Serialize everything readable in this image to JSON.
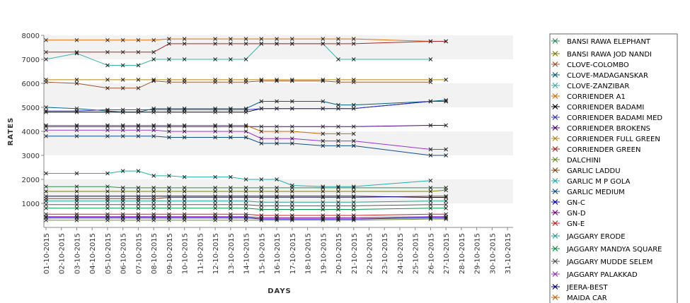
{
  "chart_data": {
    "type": "line",
    "xlabel": "DAYS",
    "ylabel": "RATES",
    "ylim": [
      0,
      8000
    ],
    "yticks": [
      1000,
      2000,
      3000,
      4000,
      5000,
      6000,
      7000,
      8000
    ],
    "grid": "alternating horizontal bands",
    "legend_position": "right",
    "categories": [
      "01-10-2015",
      "02-10-2015",
      "03-10-2015",
      "04-10-2015",
      "05-10-2015",
      "06-10-2015",
      "07-10-2015",
      "08-10-2015",
      "09-10-2015",
      "10-10-2015",
      "11-10-2015",
      "12-10-2015",
      "13-10-2015",
      "14-10-2015",
      "15-10-2015",
      "16-10-2015",
      "17-10-2015",
      "18-10-2015",
      "19-10-2015",
      "20-10-2015",
      "21-10-2015",
      "22-10-2015",
      "23-10-2015",
      "24-10-2015",
      "25-10-2015",
      "26-10-2015",
      "27-10-2015",
      "28-10-2015",
      "29-10-2015",
      "30-10-2015",
      "31-10-2015"
    ],
    "dates": [
      "01-10-2015",
      "03-10-2015",
      "05-10-2015",
      "06-10-2015",
      "07-10-2015",
      "08-10-2015",
      "09-10-2015",
      "10-10-2015",
      "12-10-2015",
      "13-10-2015",
      "14-10-2015",
      "15-10-2015",
      "16-10-2015",
      "17-10-2015",
      "19-10-2015",
      "20-10-2015",
      "21-10-2015",
      "26-10-2015",
      "27-10-2015"
    ],
    "series": [
      {
        "name": "BANSI RAWA ELEPHANT",
        "color": "#2e8b57",
        "values": [
          1700,
          1700,
          1700,
          1650,
          1650,
          1650,
          1650,
          1650,
          1650,
          1650,
          1650,
          1650,
          1650,
          1650,
          1650,
          1650,
          1650,
          1650,
          1650
        ]
      },
      {
        "name": "BANSI RAWA JOD NANDI",
        "color": "#808000",
        "values": [
          1500,
          1500,
          1500,
          1500,
          1500,
          1500,
          1500,
          1500,
          1500,
          1500,
          1500,
          1500,
          1500,
          1500,
          1500,
          1500,
          1500,
          1500,
          1550
        ]
      },
      {
        "name": "CLOVE-COLOMBO",
        "color": "#a0522d",
        "values": [
          6050,
          6000,
          5800,
          5800,
          5800,
          6100,
          6050,
          6050,
          6050,
          6050,
          6050,
          6100,
          6100,
          6100,
          6100,
          6050,
          6050,
          6050,
          null
        ]
      },
      {
        "name": "CLOVE-MADAGANSKAR",
        "color": "#006080",
        "values": [
          5000,
          4950,
          4850,
          4800,
          4800,
          4950,
          4950,
          4950,
          4950,
          4950,
          4950,
          5250,
          5250,
          5250,
          5250,
          5100,
          5100,
          5250,
          5300
        ]
      },
      {
        "name": "CLOVE-ZANZIBAR",
        "color": "#3cb3a8",
        "values": [
          7000,
          7250,
          6750,
          6750,
          6750,
          7000,
          7000,
          7000,
          7000,
          7000,
          7000,
          7650,
          7650,
          7650,
          7650,
          7000,
          7000,
          7000,
          null
        ]
      },
      {
        "name": "CORRIENDER A1",
        "color": "#e07000",
        "values": [
          7800,
          7800,
          7800,
          7800,
          7800,
          7800,
          7850,
          7850,
          7850,
          7850,
          7850,
          7850,
          7850,
          7850,
          7850,
          7850,
          7850,
          7750,
          7750
        ]
      },
      {
        "name": "CORRIENDER BADAMI",
        "color": "#000000",
        "values": [
          4800,
          4800,
          4800,
          4800,
          4800,
          4800,
          4800,
          4800,
          4800,
          4800,
          4800,
          4950,
          4950,
          4950,
          4950,
          4950,
          4950,
          5250,
          5250
        ]
      },
      {
        "name": "CORRIENDER BADAMI MED",
        "color": "#3333cc",
        "values": [
          4850,
          4850,
          4900,
          4900,
          4900,
          4900,
          4900,
          4900,
          4900,
          4900,
          4900,
          4950,
          4950,
          4950,
          4950,
          4950,
          4950,
          5250,
          5250
        ]
      },
      {
        "name": "CORRIENDER BROKENS",
        "color": "#4b0082",
        "values": [
          4200,
          4200,
          4200,
          4200,
          4200,
          4200,
          4200,
          4200,
          4200,
          4200,
          4200,
          4200,
          4200,
          4200,
          4200,
          4200,
          4200,
          4250,
          4250
        ]
      },
      {
        "name": "CORRIENDER FULL GREEN",
        "color": "#b8860b",
        "values": [
          6150,
          6150,
          6150,
          6150,
          6150,
          6150,
          6150,
          6150,
          6150,
          6150,
          6150,
          6150,
          6150,
          6150,
          6150,
          6150,
          6150,
          6150,
          6150
        ]
      },
      {
        "name": "CORRIENDER GREEN",
        "color": "#b22222",
        "values": [
          7300,
          7300,
          7300,
          7300,
          7300,
          7300,
          7650,
          7650,
          7650,
          7650,
          7650,
          7650,
          7650,
          7650,
          7650,
          7650,
          7650,
          7750,
          7750
        ]
      },
      {
        "name": "DALCHINI",
        "color": "#6b8e23",
        "values": [
          300,
          300,
          300,
          300,
          300,
          300,
          300,
          300,
          300,
          300,
          300,
          300,
          300,
          300,
          300,
          300,
          300,
          350,
          350
        ]
      },
      {
        "name": "GARLIC LADDU",
        "color": "#8b4513",
        "values": [
          1200,
          1200,
          1200,
          1200,
          1200,
          1200,
          1250,
          1250,
          1250,
          1250,
          1250,
          1250,
          1250,
          1250,
          1250,
          1250,
          1250,
          1300,
          1300
        ]
      },
      {
        "name": "GARLIC M P GOLA",
        "color": "#20b2aa",
        "values": [
          2250,
          2250,
          2250,
          2350,
          2350,
          2150,
          2150,
          2100,
          2100,
          2100,
          2000,
          2000,
          2000,
          1750,
          1700,
          1700,
          1700,
          1950,
          null
        ]
      },
      {
        "name": "GARLIC MEDIUM",
        "color": "#104e8b",
        "values": [
          3800,
          3800,
          3800,
          3800,
          3800,
          3800,
          3750,
          3750,
          3750,
          3750,
          3750,
          3500,
          3500,
          3500,
          3400,
          3400,
          3400,
          3000,
          3000
        ]
      },
      {
        "name": "GN-C",
        "color": "#0000cd",
        "values": [
          400,
          400,
          400,
          400,
          400,
          400,
          400,
          400,
          400,
          400,
          400,
          350,
          350,
          350,
          350,
          350,
          350,
          400,
          400
        ]
      },
      {
        "name": "GN-D",
        "color": "#800080",
        "values": [
          450,
          450,
          450,
          450,
          450,
          450,
          450,
          450,
          450,
          450,
          450,
          400,
          400,
          400,
          400,
          400,
          400,
          450,
          450
        ]
      },
      {
        "name": "GN-E",
        "color": "#cc2222",
        "values": [
          550,
          550,
          550,
          550,
          550,
          550,
          550,
          550,
          550,
          550,
          550,
          500,
          500,
          500,
          500,
          500,
          500,
          550,
          550
        ]
      },
      {
        "name": "JAGGARY ERODE",
        "color": "#2aa198",
        "values": [
          1100,
          1100,
          1100,
          1100,
          1100,
          1100,
          1100,
          1100,
          1100,
          1100,
          1100,
          1050,
          1050,
          1050,
          1050,
          1050,
          1050,
          1100,
          1100
        ]
      },
      {
        "name": "JAGGARY MANDYA SQUARE",
        "color": "#009944",
        "values": [
          800,
          800,
          800,
          800,
          800,
          800,
          800,
          800,
          800,
          800,
          800,
          750,
          750,
          750,
          750,
          750,
          750,
          800,
          800
        ]
      },
      {
        "name": "JAGGARY MUDDE SELEM",
        "color": "#555555",
        "values": [
          950,
          950,
          950,
          950,
          950,
          950,
          950,
          950,
          950,
          950,
          950,
          900,
          900,
          900,
          900,
          900,
          900,
          950,
          950
        ]
      },
      {
        "name": "JAGGARY PALAKKAD",
        "color": "#9932cc",
        "values": [
          4050,
          4050,
          4050,
          4050,
          4050,
          4050,
          4000,
          4000,
          4000,
          4000,
          4000,
          3700,
          3700,
          3700,
          3600,
          3600,
          3600,
          3250,
          3250
        ]
      },
      {
        "name": "JEERA-BEST",
        "color": "#00008b",
        "values": [
          1300,
          1300,
          1300,
          1300,
          1300,
          1300,
          1300,
          1300,
          1300,
          1300,
          1300,
          1300,
          1300,
          1300,
          1300,
          1300,
          1300,
          1250,
          1250
        ]
      },
      {
        "name": "MAIDA CAR",
        "color": "#cc6600",
        "values": [
          4250,
          4250,
          4250,
          4250,
          4250,
          4250,
          4250,
          4250,
          4250,
          4250,
          4250,
          4000,
          4000,
          4000,
          3900,
          3900,
          3900,
          null,
          null
        ]
      }
    ]
  }
}
